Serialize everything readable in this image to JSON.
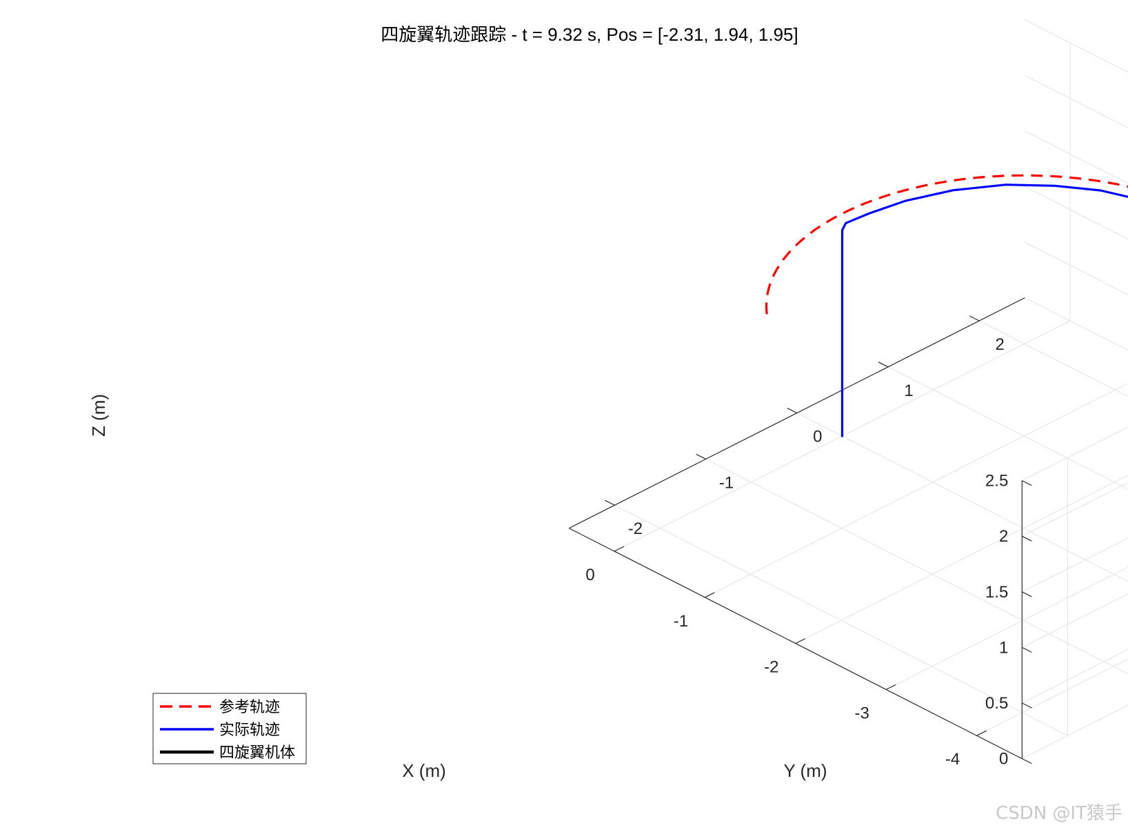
{
  "chart_data": {
    "type": "line3d",
    "title": "四旋翼轨迹跟踪 - t = 9.32 s, Pos = [-2.31, 1.94, 1.95]",
    "xlabel": "X (m)",
    "ylabel": "Y (m)",
    "zlabel": "Z (m)",
    "xlim": [
      -4.5,
      0.5
    ],
    "ylim": [
      -2.5,
      2.5
    ],
    "zlim": [
      0,
      2.5
    ],
    "xticks": [
      -4,
      -3,
      -2,
      -1,
      0
    ],
    "xtick_labels": [
      "-4",
      "-3",
      "-2",
      "-1",
      "0"
    ],
    "yticks": [
      -2,
      -1,
      0,
      1,
      2
    ],
    "ytick_labels": [
      "-2",
      "-1",
      "0",
      "1",
      "2"
    ],
    "zticks": [
      0,
      0.5,
      1,
      1.5,
      2,
      2.5
    ],
    "ztick_labels": [
      "0",
      "0.5",
      "1",
      "1.5",
      "2",
      "2.5"
    ],
    "grid": true,
    "legend_position": "bottom-left",
    "reference": {
      "name": "参考轨迹",
      "color": "#ff0000",
      "style": "dashed",
      "center": [
        -2,
        0,
        2
      ],
      "radius": 2,
      "z": 2,
      "theta_start": -0.85,
      "theta_end": 3.25
    },
    "actual": {
      "name": "实际轨迹",
      "color": "#0000ff",
      "points": [
        [
          0,
          0,
          0
        ],
        [
          0,
          0,
          1.8
        ],
        [
          0.002,
          0.003,
          1.85
        ],
        [
          0.01,
          0.05,
          1.89
        ],
        [
          -0.05,
          0.25,
          1.92
        ],
        [
          -0.15,
          0.55,
          1.95
        ],
        [
          -0.32,
          0.9,
          1.97
        ],
        [
          -0.55,
          1.25,
          1.97
        ],
        [
          -0.82,
          1.52,
          1.96
        ],
        [
          -1.12,
          1.72,
          1.96
        ],
        [
          -1.42,
          1.84,
          1.955
        ],
        [
          -1.72,
          1.9,
          1.95
        ],
        [
          -2.02,
          1.925,
          1.95
        ],
        [
          -2.31,
          1.94,
          1.95
        ]
      ]
    },
    "quad": {
      "name": "四旋翼机体",
      "color": "#000000",
      "rotor_color": "#ff0000",
      "position": [
        -2.31,
        1.94,
        1.95
      ],
      "arm_length": 0.4
    },
    "ground_marker": {
      "position": [
        -2.31,
        1.94,
        0
      ],
      "color": "#a0a0a0"
    }
  },
  "watermark": "CSDN @IT猿手"
}
